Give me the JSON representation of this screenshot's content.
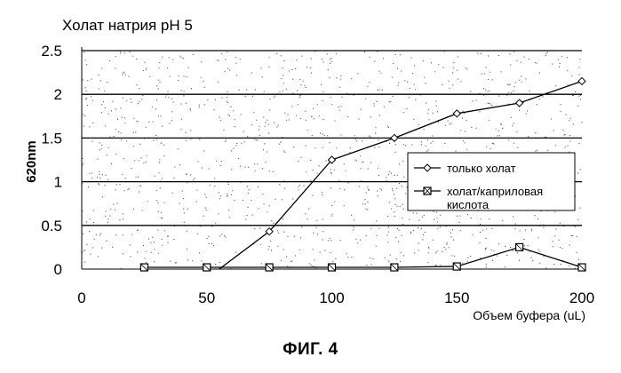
{
  "figure_caption": "ФИГ. 4",
  "chart_data": {
    "type": "line",
    "title": "Холат натрия pH 5",
    "xlabel": "Объем буфера (uL)",
    "ylabel": "620nm",
    "xlim": [
      0,
      200
    ],
    "ylim": [
      0,
      2.5
    ],
    "x_ticks": [
      {
        "value": 0,
        "label": "0"
      },
      {
        "value": 50,
        "label": "50"
      },
      {
        "value": 100,
        "label": "100"
      },
      {
        "value": 150,
        "label": "150"
      },
      {
        "value": 200,
        "label": "200"
      }
    ],
    "y_ticks": [
      {
        "value": 0,
        "label": "0"
      },
      {
        "value": 0.5,
        "label": "0.5"
      },
      {
        "value": 1,
        "label": "1"
      },
      {
        "value": 1.5,
        "label": "1.5"
      },
      {
        "value": 2,
        "label": "2"
      },
      {
        "value": 2.5,
        "label": "2.5"
      }
    ],
    "grid": "horizontal",
    "legend_position": "right",
    "x": [
      0,
      25,
      50,
      75,
      100,
      125,
      150,
      175,
      200
    ],
    "series": [
      {
        "name": "только холат",
        "marker": "diamond",
        "values": [
          null,
          null,
          null,
          0.43,
          1.25,
          1.5,
          1.78,
          1.9,
          2.15
        ]
      },
      {
        "name": "холат/каприловая кислота",
        "marker": "square",
        "values": [
          null,
          0.02,
          0.02,
          0.02,
          0.02,
          0.02,
          0.03,
          0.25,
          0.02
        ]
      }
    ],
    "line_segment_start": {
      "x": 55,
      "y": 0
    },
    "colors": {
      "line": "#000000",
      "grid": "#000000",
      "speckle": "#555555"
    }
  }
}
